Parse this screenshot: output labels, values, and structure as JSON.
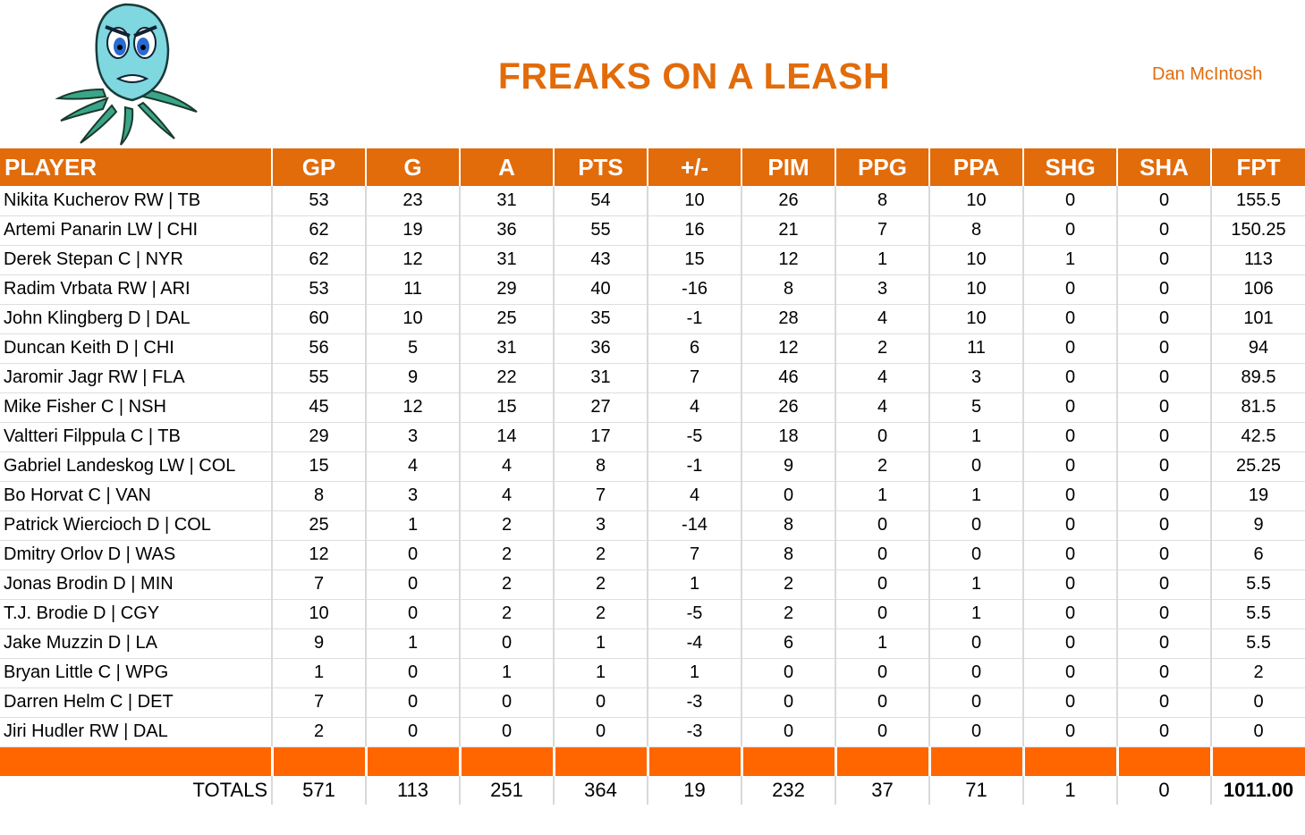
{
  "header": {
    "title": "FREAKS ON A LEASH",
    "owner": "Dan McIntosh",
    "accent": "#E26B0A",
    "band": "#FF6600"
  },
  "columns": [
    "PLAYER",
    "GP",
    "G",
    "A",
    "PTS",
    "+/-",
    "PIM",
    "PPG",
    "PPA",
    "SHG",
    "SHA",
    "FPT"
  ],
  "rows": [
    [
      "Nikita Kucherov RW | TB",
      "53",
      "23",
      "31",
      "54",
      "10",
      "26",
      "8",
      "10",
      "0",
      "0",
      "155.5"
    ],
    [
      "Artemi Panarin LW | CHI",
      "62",
      "19",
      "36",
      "55",
      "16",
      "21",
      "7",
      "8",
      "0",
      "0",
      "150.25"
    ],
    [
      "Derek Stepan C | NYR",
      "62",
      "12",
      "31",
      "43",
      "15",
      "12",
      "1",
      "10",
      "1",
      "0",
      "113"
    ],
    [
      "Radim Vrbata RW | ARI",
      "53",
      "11",
      "29",
      "40",
      "-16",
      "8",
      "3",
      "10",
      "0",
      "0",
      "106"
    ],
    [
      "John Klingberg D | DAL",
      "60",
      "10",
      "25",
      "35",
      "-1",
      "28",
      "4",
      "10",
      "0",
      "0",
      "101"
    ],
    [
      "Duncan Keith D | CHI",
      "56",
      "5",
      "31",
      "36",
      "6",
      "12",
      "2",
      "11",
      "0",
      "0",
      "94"
    ],
    [
      "Jaromir Jagr RW | FLA",
      "55",
      "9",
      "22",
      "31",
      "7",
      "46",
      "4",
      "3",
      "0",
      "0",
      "89.5"
    ],
    [
      "Mike Fisher C | NSH",
      "45",
      "12",
      "15",
      "27",
      "4",
      "26",
      "4",
      "5",
      "0",
      "0",
      "81.5"
    ],
    [
      "Valtteri Filppula C | TB",
      "29",
      "3",
      "14",
      "17",
      "-5",
      "18",
      "0",
      "1",
      "0",
      "0",
      "42.5"
    ],
    [
      "Gabriel Landeskog LW | COL",
      "15",
      "4",
      "4",
      "8",
      "-1",
      "9",
      "2",
      "0",
      "0",
      "0",
      "25.25"
    ],
    [
      "Bo Horvat C | VAN",
      "8",
      "3",
      "4",
      "7",
      "4",
      "0",
      "1",
      "1",
      "0",
      "0",
      "19"
    ],
    [
      "Patrick Wiercioch D | COL",
      "25",
      "1",
      "2",
      "3",
      "-14",
      "8",
      "0",
      "0",
      "0",
      "0",
      "9"
    ],
    [
      "Dmitry Orlov D | WAS",
      "12",
      "0",
      "2",
      "2",
      "7",
      "8",
      "0",
      "0",
      "0",
      "0",
      "6"
    ],
    [
      "Jonas Brodin D | MIN",
      "7",
      "0",
      "2",
      "2",
      "1",
      "2",
      "0",
      "1",
      "0",
      "0",
      "5.5"
    ],
    [
      "T.J. Brodie D | CGY",
      "10",
      "0",
      "2",
      "2",
      "-5",
      "2",
      "0",
      "1",
      "0",
      "0",
      "5.5"
    ],
    [
      "Jake Muzzin D | LA",
      "9",
      "1",
      "0",
      "1",
      "-4",
      "6",
      "1",
      "0",
      "0",
      "0",
      "5.5"
    ],
    [
      "Bryan Little C | WPG",
      "1",
      "0",
      "1",
      "1",
      "1",
      "0",
      "0",
      "0",
      "0",
      "0",
      "2"
    ],
    [
      "Darren Helm C | DET",
      "7",
      "0",
      "0",
      "0",
      "-3",
      "0",
      "0",
      "0",
      "0",
      "0",
      "0"
    ],
    [
      "Jiri Hudler RW | DAL",
      "2",
      "0",
      "0",
      "0",
      "-3",
      "0",
      "0",
      "0",
      "0",
      "0",
      "0"
    ]
  ],
  "totals": [
    "TOTALS",
    "571",
    "113",
    "251",
    "364",
    "19",
    "232",
    "37",
    "71",
    "1",
    "0",
    "1011.00"
  ]
}
